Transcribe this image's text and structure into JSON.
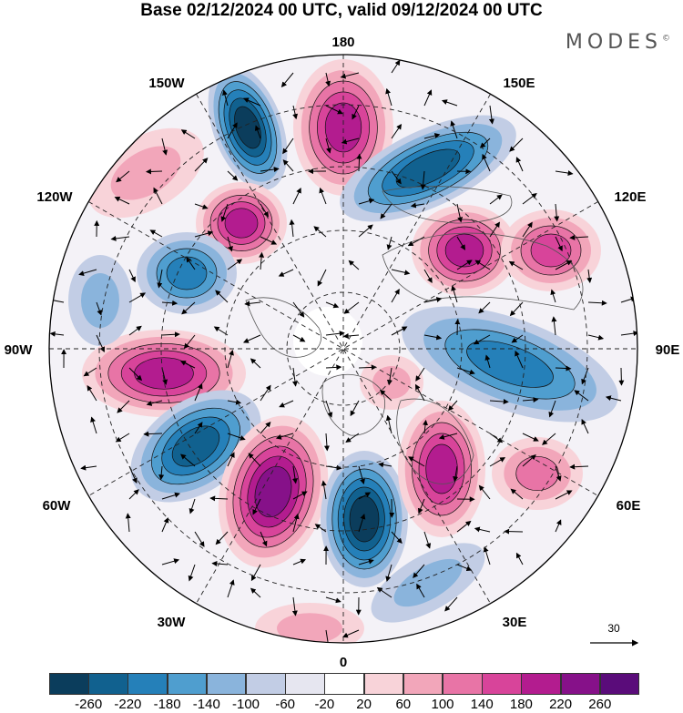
{
  "title": "Base 02/12/2024 00 UTC, valid 09/12/2024 00 UTC",
  "brand": "MODES",
  "brand_mark": "©",
  "longitude_labels": {
    "top": "180",
    "top_left": "150W",
    "top_right": "150E",
    "upper_left": "120W",
    "upper_right": "120E",
    "left": "90W",
    "right": "90E",
    "lower_left": "60W",
    "lower_right": "60E",
    "bottom_left": "30W",
    "bottom_right": "30E",
    "bottom": "0"
  },
  "vector_reference": "30",
  "colorbar": {
    "ticks": [
      "-260",
      "-220",
      "-180",
      "-140",
      "-100",
      "-60",
      "-20",
      "20",
      "60",
      "100",
      "140",
      "180",
      "220",
      "260"
    ],
    "colors": [
      "#0b3d5c",
      "#11618f",
      "#2580b9",
      "#4f9ecf",
      "#8ab4dc",
      "#c2cde5",
      "#e6e6f0",
      "#ffffff",
      "#f8d3d9",
      "#f2a6ba",
      "#e874a6",
      "#d8449a",
      "#b31c8f",
      "#861189",
      "#5a0c7a"
    ]
  },
  "anomaly_colors": {
    "pos_light": "#f8d3d9",
    "pos_1": "#f2a6ba",
    "pos_2": "#e874a6",
    "pos_3": "#d8449a",
    "pos_4": "#b31c8f",
    "pos_5": "#861189",
    "neg_light": "#c2cde5",
    "neg_1": "#8ab4dc",
    "neg_2": "#4f9ecf",
    "neg_3": "#2580b9",
    "neg_4": "#11618f",
    "neg_5": "#0b3d5c"
  }
}
